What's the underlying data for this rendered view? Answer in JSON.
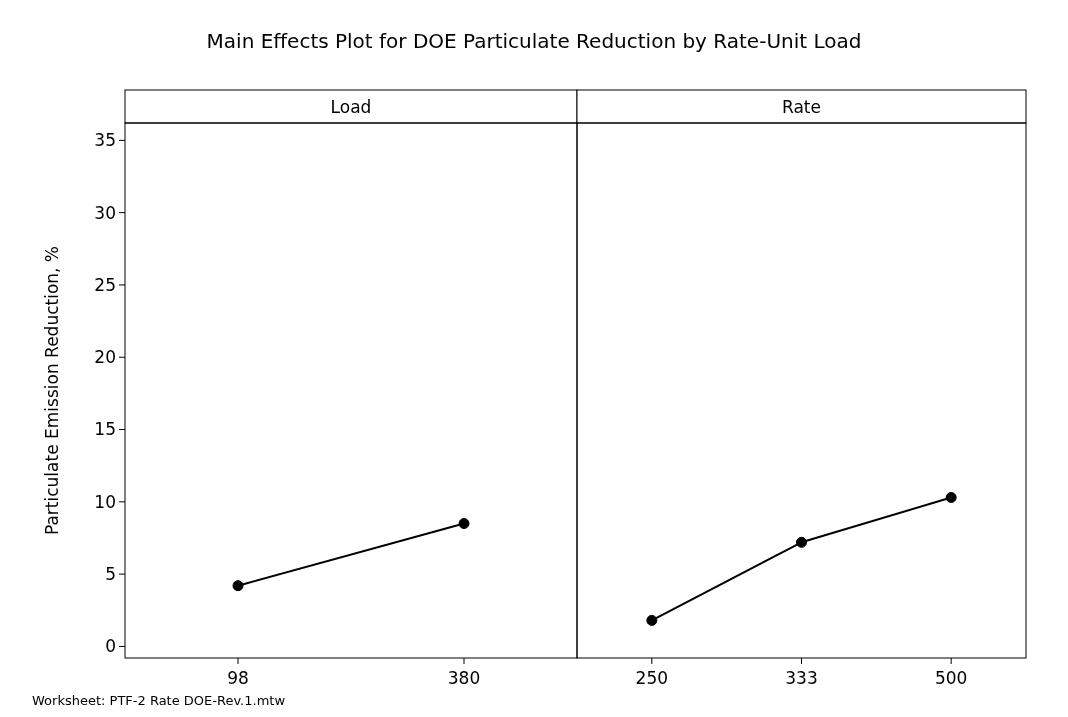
{
  "chart_data": [
    {
      "type": "line",
      "title": "Main Effects Plot for DOE Particulate Reduction by Rate-Unit Load",
      "subtitle": "Load",
      "ylabel": "Particulate Emission Reduction, %",
      "categories": [
        "98",
        "380"
      ],
      "series": [
        {
          "color": "#000000",
          "values": [
            4.2,
            8.5
          ]
        }
      ],
      "ylim": [
        -0.8,
        36.2
      ],
      "yticks": [
        0,
        5,
        10,
        15,
        20,
        25,
        30,
        35
      ],
      "marker": "circle",
      "annotations": [
        "Worksheet: PTF-2 Rate DOE-Rev.1.mtw"
      ]
    },
    {
      "type": "line",
      "subtitle": "Rate",
      "categories": [
        "250",
        "333",
        "500"
      ],
      "series": [
        {
          "color": "#000000",
          "values": [
            1.8,
            7.2,
            10.3
          ]
        }
      ],
      "ylim": [
        -0.8,
        36.2
      ],
      "marker": "circle",
      "tick_labels": "x"
    }
  ]
}
